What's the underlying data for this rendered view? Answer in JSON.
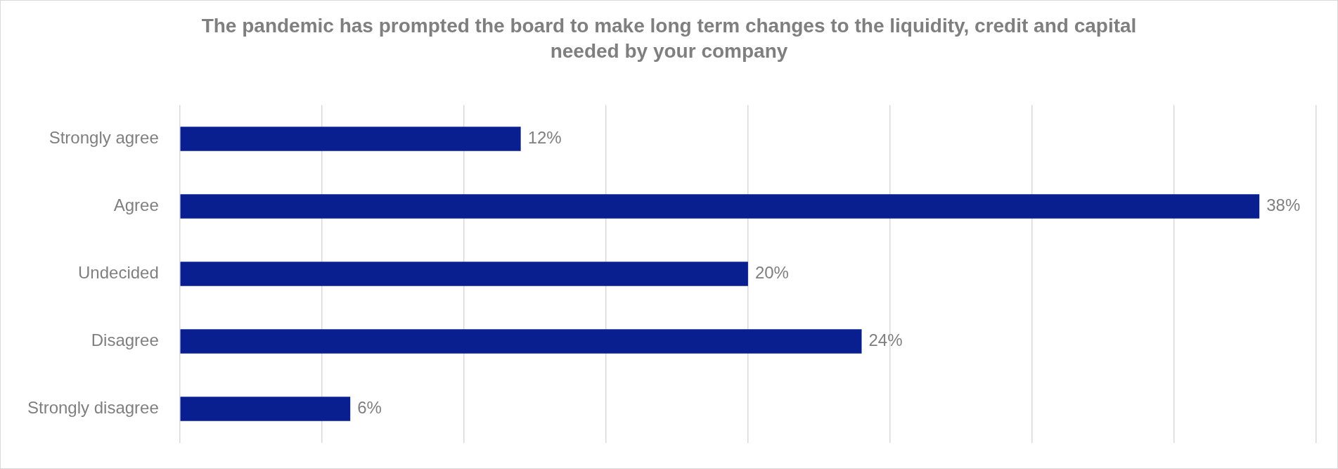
{
  "chart_data": {
    "type": "bar",
    "orientation": "horizontal",
    "title": "The pandemic has prompted the board to make long term changes to the liquidity, credit and capital needed by your company",
    "categories": [
      "Strongly agree",
      "Agree",
      "Undecided",
      "Disagree",
      "Strongly disagree"
    ],
    "values": [
      12,
      38,
      20,
      24,
      6
    ],
    "value_labels": [
      "12%",
      "38%",
      "20%",
      "24%",
      "6%"
    ],
    "color": "#0a1f8f",
    "xlim": [
      0,
      40
    ],
    "xticks": [
      {
        "value": 0,
        "label": null
      },
      {
        "value": 5,
        "label": null
      },
      {
        "value": 10,
        "label": null
      },
      {
        "value": 15,
        "label": null
      },
      {
        "value": 20,
        "label": null
      },
      {
        "value": 25,
        "label": null
      },
      {
        "value": 30,
        "label": null
      },
      {
        "value": 35,
        "label": null
      },
      {
        "value": 40,
        "label": null
      }
    ],
    "grid": "x",
    "tick_labels": "y"
  }
}
